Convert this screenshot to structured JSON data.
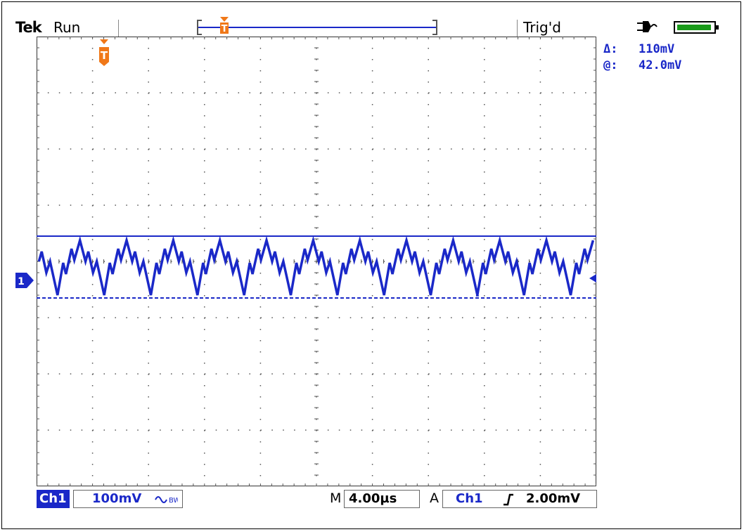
{
  "header": {
    "brand": "Tek",
    "run_state": "Run",
    "trigger_state": "Trig'd"
  },
  "measurements": {
    "delta_label": "Δ:",
    "delta_value": "110mV",
    "at_label": "@:",
    "at_value": "42.0mV"
  },
  "markers": {
    "trigger_marker": "T",
    "channel_marker": "1"
  },
  "footer": {
    "channel": "Ch1",
    "volts_div": "100mV",
    "coupling_icon": "bandwidth-limit-icon",
    "time_prefix": "M",
    "time_div": "4.00µs",
    "trig_mode": "A",
    "trig_source": "Ch1",
    "trig_slope_icon": "rising-edge-icon",
    "trig_level": "2.00mV"
  },
  "display": {
    "h_divisions": 10,
    "v_divisions": 8,
    "trace_color": "#1a28c8",
    "trigger_color": "#f07818",
    "grid_color": "#555555"
  },
  "chart_data": {
    "type": "line",
    "title": "",
    "xlabel": "",
    "ylabel": "",
    "x_unit_per_div": "4.00µs",
    "y_unit_per_div": "100mV",
    "ripple_cycles": 12,
    "ripple_peak_to_peak_mV": 110,
    "cursor_top_div": 0.45,
    "cursor_bottom_div": -0.65,
    "ylim_div": [
      -4,
      4
    ],
    "xlim_div": [
      0,
      10
    ]
  }
}
